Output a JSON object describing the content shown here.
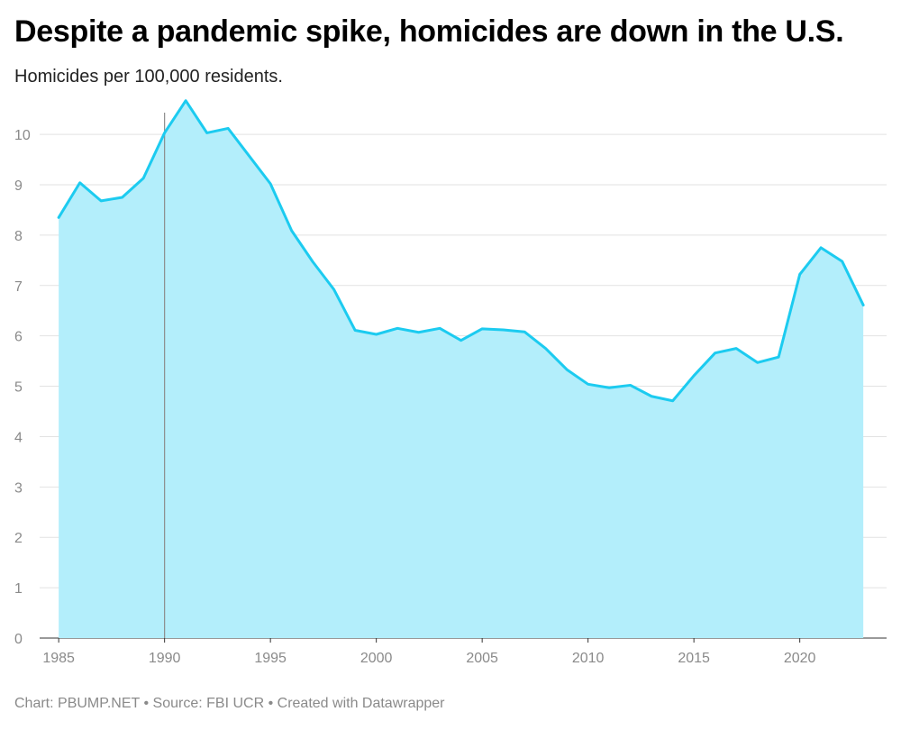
{
  "chart_data": {
    "type": "area",
    "title": "Despite a pandemic spike, homicides are down in the U.S.",
    "subtitle": "Homicides per 100,000 residents.",
    "footer": {
      "chart_credit": "Chart: PBUMP.NET",
      "source": "Source: FBI UCR",
      "tool": "Created with Datawrapper",
      "separator": "•"
    },
    "xlabel": "",
    "ylabel": "",
    "x": [
      1985,
      1986,
      1987,
      1988,
      1989,
      1990,
      1991,
      1992,
      1993,
      1994,
      1995,
      1996,
      1997,
      1998,
      1999,
      2000,
      2001,
      2002,
      2003,
      2004,
      2005,
      2006,
      2007,
      2008,
      2009,
      2010,
      2011,
      2012,
      2013,
      2014,
      2015,
      2016,
      2017,
      2018,
      2019,
      2020,
      2021,
      2022,
      2023
    ],
    "series": [
      {
        "values": [
          8.35,
          9.04,
          8.68,
          8.75,
          9.13,
          10.03,
          10.67,
          10.03,
          10.12,
          9.57,
          9.02,
          8.09,
          7.47,
          6.92,
          6.11,
          6.03,
          6.15,
          6.07,
          6.15,
          5.91,
          6.14,
          6.12,
          6.08,
          5.75,
          5.33,
          5.04,
          4.97,
          5.02,
          4.8,
          4.71,
          5.21,
          5.66,
          5.75,
          5.47,
          5.58,
          7.22,
          7.75,
          7.48,
          6.61
        ],
        "color": "#1ccbf0",
        "fill_color": "#b3eefb"
      }
    ],
    "x_ticks": [
      "1985",
      "1990",
      "1995",
      "2000",
      "2005",
      "2010",
      "2015",
      "2020"
    ],
    "y_ticks": [
      "0",
      "1",
      "2",
      "3",
      "4",
      "5",
      "6",
      "7",
      "8",
      "9",
      "10"
    ],
    "xlim": [
      1984.1,
      2024.1
    ],
    "ylim": [
      0,
      10.7
    ],
    "reference_line_x": 1990,
    "reference_line_color": "#8c8c8c",
    "grid": true,
    "legend": "none"
  }
}
